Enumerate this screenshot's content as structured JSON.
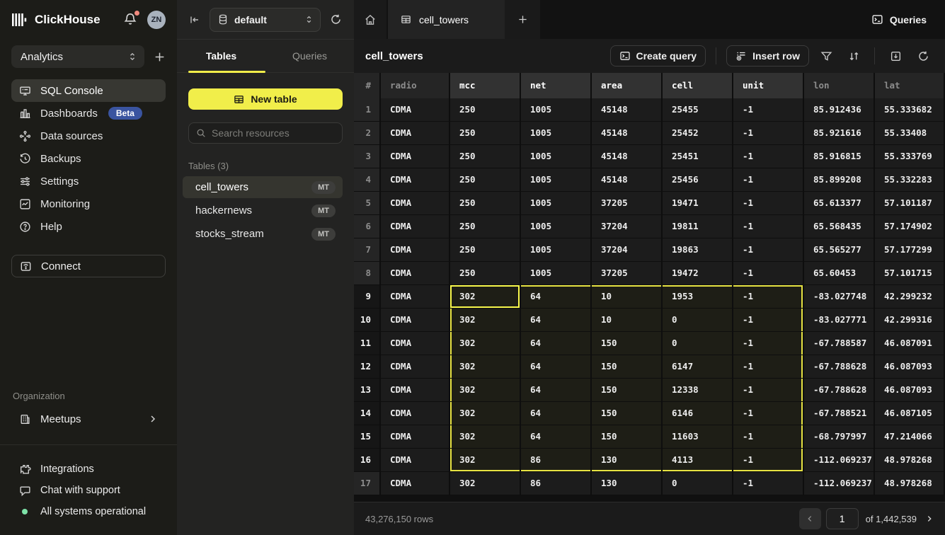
{
  "brand": {
    "name": "ClickHouse"
  },
  "topbar": {
    "avatar_initials": "ZN"
  },
  "sidebar": {
    "workspace": "Analytics",
    "nav": [
      {
        "label": "SQL Console",
        "active": true
      },
      {
        "label": "Dashboards",
        "badge": "Beta"
      },
      {
        "label": "Data sources"
      },
      {
        "label": "Backups"
      },
      {
        "label": "Settings"
      },
      {
        "label": "Monitoring"
      },
      {
        "label": "Help"
      }
    ],
    "connect_label": "Connect",
    "organization_label": "Organization",
    "meetups_label": "Meetups",
    "footer": {
      "integrations": "Integrations",
      "chat": "Chat with support",
      "status": "All systems operational"
    }
  },
  "explorer": {
    "database": "default",
    "tabs": {
      "tables": "Tables",
      "queries": "Queries"
    },
    "new_table_label": "New table",
    "search_placeholder": "Search resources",
    "section_label": "Tables (3)",
    "tables": [
      {
        "name": "cell_towers",
        "badge": "MT",
        "active": true
      },
      {
        "name": "hackernews",
        "badge": "MT"
      },
      {
        "name": "stocks_stream",
        "badge": "MT"
      }
    ]
  },
  "main": {
    "tab_label": "cell_towers",
    "queries_label": "Queries",
    "title": "cell_towers",
    "create_query_label": "Create query",
    "insert_row_label": "Insert row"
  },
  "grid": {
    "row_header": "#",
    "columns": [
      "radio",
      "mcc",
      "net",
      "area",
      "cell",
      "unit",
      "lon",
      "lat"
    ],
    "rows": [
      [
        "CDMA",
        "250",
        "1005",
        "45148",
        "25455",
        "-1",
        "85.912436",
        "55.333682"
      ],
      [
        "CDMA",
        "250",
        "1005",
        "45148",
        "25452",
        "-1",
        "85.921616",
        "55.33408"
      ],
      [
        "CDMA",
        "250",
        "1005",
        "45148",
        "25451",
        "-1",
        "85.916815",
        "55.333769"
      ],
      [
        "CDMA",
        "250",
        "1005",
        "45148",
        "25456",
        "-1",
        "85.899208",
        "55.332283"
      ],
      [
        "CDMA",
        "250",
        "1005",
        "37205",
        "19471",
        "-1",
        "65.613377",
        "57.101187"
      ],
      [
        "CDMA",
        "250",
        "1005",
        "37204",
        "19811",
        "-1",
        "65.568435",
        "57.174902"
      ],
      [
        "CDMA",
        "250",
        "1005",
        "37204",
        "19863",
        "-1",
        "65.565277",
        "57.177299"
      ],
      [
        "CDMA",
        "250",
        "1005",
        "37205",
        "19472",
        "-1",
        "65.60453",
        "57.101715"
      ],
      [
        "CDMA",
        "302",
        "64",
        "10",
        "1953",
        "-1",
        "-83.027748",
        "42.299232"
      ],
      [
        "CDMA",
        "302",
        "64",
        "10",
        "0",
        "-1",
        "-83.027771",
        "42.299316"
      ],
      [
        "CDMA",
        "302",
        "64",
        "150",
        "0",
        "-1",
        "-67.788587",
        "46.087091"
      ],
      [
        "CDMA",
        "302",
        "64",
        "150",
        "6147",
        "-1",
        "-67.788628",
        "46.087093"
      ],
      [
        "CDMA",
        "302",
        "64",
        "150",
        "12338",
        "-1",
        "-67.788628",
        "46.087093"
      ],
      [
        "CDMA",
        "302",
        "64",
        "150",
        "6146",
        "-1",
        "-67.788521",
        "46.087105"
      ],
      [
        "CDMA",
        "302",
        "64",
        "150",
        "11603",
        "-1",
        "-68.797997",
        "47.214066"
      ],
      [
        "CDMA",
        "302",
        "86",
        "130",
        "4113",
        "-1",
        "-112.069237",
        "48.978268"
      ],
      [
        "CDMA",
        "302",
        "86",
        "130",
        "0",
        "-1",
        "-112.069237",
        "48.978268"
      ]
    ],
    "selection": {
      "row_start": 9,
      "row_end": 16,
      "col_start": 1,
      "col_end": 5,
      "active_row": 9,
      "active_col": 1
    }
  },
  "footer": {
    "row_count": "43,276,150 rows",
    "page": "1",
    "page_total": "of 1,442,539"
  },
  "colors": {
    "accent_yellow": "#f1ee4a",
    "selection_border": "#e6e242",
    "active_cell_border": "#f7f74b",
    "beta_badge": "#3a54a0",
    "status_green": "#7ee2a8",
    "notification_dot": "#f08a7e"
  }
}
